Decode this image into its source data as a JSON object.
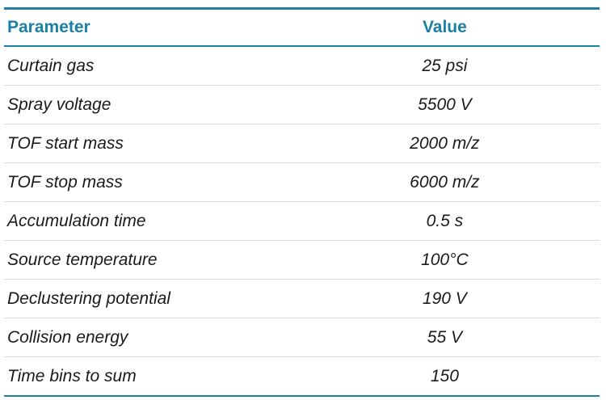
{
  "table": {
    "columns": [
      {
        "label": "Parameter",
        "align": "left"
      },
      {
        "label": "Value",
        "align": "center"
      }
    ],
    "rows": [
      {
        "parameter": "Curtain gas",
        "value": "25 psi"
      },
      {
        "parameter": "Spray voltage",
        "value": "5500 V"
      },
      {
        "parameter": "TOF start mass",
        "value": "2000 m/z"
      },
      {
        "parameter": "TOF stop mass",
        "value": "6000 m/z"
      },
      {
        "parameter": "Accumulation time",
        "value": "0.5 s"
      },
      {
        "parameter": "Source temperature",
        "value": "100°C"
      },
      {
        "parameter": "Declustering potential",
        "value": "190 V"
      },
      {
        "parameter": "Collision energy",
        "value": "55 V"
      },
      {
        "parameter": "Time bins to sum",
        "value": "150"
      }
    ],
    "colors": {
      "accent": "#1a80a8",
      "divider": "#d9d9d9",
      "text": "#1a1a1a",
      "background": "#ffffff"
    }
  }
}
